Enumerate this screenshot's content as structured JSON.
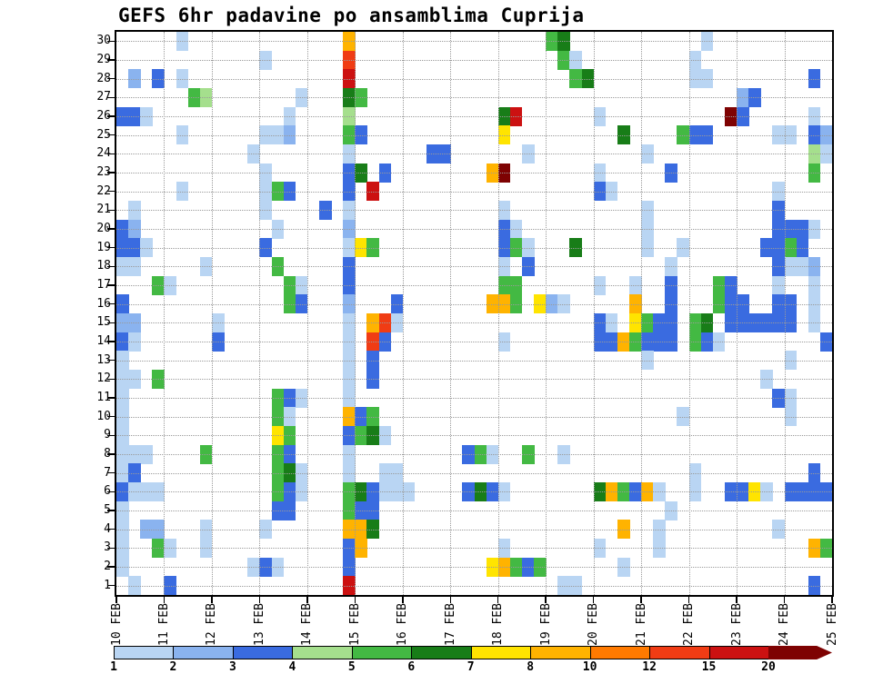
{
  "chart_data": {
    "type": "heatmap",
    "title": "GEFS 6hr padavine po ansamblima Cuprija",
    "x_axis": {
      "tick_labels": [
        "10 FEB",
        "11 FEB",
        "12 FEB",
        "13 FEB",
        "14 FEB",
        "15 FEB",
        "16 FEB",
        "17 FEB",
        "18 FEB",
        "19 FEB",
        "20 FEB",
        "21 FEB",
        "22 FEB",
        "23 FEB",
        "24 FEB",
        "25 FEB"
      ],
      "steps_per_day": 4,
      "n_steps": 60
    },
    "y_axis": {
      "tick_labels": [
        "1",
        "2",
        "3",
        "4",
        "5",
        "6",
        "7",
        "8",
        "9",
        "10",
        "11",
        "12",
        "13",
        "14",
        "15",
        "16",
        "17",
        "18",
        "19",
        "20",
        "21",
        "22",
        "23",
        "24",
        "25",
        "26",
        "27",
        "28",
        "29",
        "30"
      ],
      "n_members": 30
    },
    "colorbar": {
      "labels": [
        "1",
        "2",
        "3",
        "4",
        "5",
        "6",
        "7",
        "8",
        "10",
        "12",
        "15",
        "20"
      ],
      "thresholds": [
        1,
        2,
        3,
        4,
        5,
        6,
        7,
        8,
        10,
        12,
        15,
        20
      ],
      "colors": [
        "#b9d5f3",
        "#8ab3ef",
        "#3a6be0",
        "#a5df8d",
        "#43b943",
        "#187d18",
        "#ffe400",
        "#ffb300",
        "#ff7a00",
        "#f03c14",
        "#cc1111",
        "#7e0202"
      ]
    },
    "cells": [
      [
        30,
        5,
        1.5
      ],
      [
        30,
        19,
        9
      ],
      [
        30,
        36,
        5.5
      ],
      [
        30,
        37,
        6.5
      ],
      [
        30,
        49,
        1.5
      ],
      [
        29,
        12,
        1.5
      ],
      [
        29,
        19,
        13
      ],
      [
        29,
        37,
        5.5
      ],
      [
        29,
        38,
        1.5
      ],
      [
        29,
        48,
        1.5
      ],
      [
        28,
        1,
        2.5
      ],
      [
        28,
        3,
        3.5
      ],
      [
        28,
        5,
        1.5
      ],
      [
        28,
        19,
        17
      ],
      [
        28,
        38,
        5.5
      ],
      [
        28,
        39,
        6.5
      ],
      [
        28,
        48,
        1.5
      ],
      [
        28,
        49,
        1.5
      ],
      [
        28,
        58,
        3.5
      ],
      [
        27,
        6,
        5.5
      ],
      [
        27,
        7,
        4.5
      ],
      [
        27,
        15,
        1.5
      ],
      [
        27,
        19,
        6.5
      ],
      [
        27,
        20,
        5.5
      ],
      [
        27,
        52,
        2.5
      ],
      [
        27,
        53,
        3.5
      ],
      [
        26,
        0,
        3.5
      ],
      [
        26,
        1,
        3.5
      ],
      [
        26,
        2,
        1.5
      ],
      [
        26,
        14,
        1.5
      ],
      [
        26,
        19,
        4.5
      ],
      [
        26,
        32,
        6.5
      ],
      [
        26,
        33,
        17
      ],
      [
        26,
        40,
        1.5
      ],
      [
        26,
        51,
        22
      ],
      [
        26,
        52,
        3.5
      ],
      [
        26,
        58,
        1.5
      ],
      [
        25,
        5,
        1.5
      ],
      [
        25,
        12,
        1.5
      ],
      [
        25,
        13,
        1.5
      ],
      [
        25,
        14,
        2.5
      ],
      [
        25,
        19,
        5.5
      ],
      [
        25,
        20,
        3.5
      ],
      [
        25,
        32,
        7.5
      ],
      [
        25,
        42,
        6.5
      ],
      [
        25,
        47,
        5.5
      ],
      [
        25,
        48,
        3.5
      ],
      [
        25,
        49,
        3.5
      ],
      [
        25,
        55,
        1.5
      ],
      [
        25,
        56,
        1.5
      ],
      [
        25,
        58,
        3.5
      ],
      [
        25,
        59,
        2.5
      ],
      [
        24,
        11,
        1.5
      ],
      [
        24,
        19,
        1.5
      ],
      [
        24,
        26,
        3.5
      ],
      [
        24,
        27,
        3.5
      ],
      [
        24,
        34,
        1.5
      ],
      [
        24,
        44,
        1.5
      ],
      [
        24,
        58,
        4.5
      ],
      [
        24,
        59,
        1.5
      ],
      [
        23,
        12,
        1.5
      ],
      [
        23,
        19,
        3.5
      ],
      [
        23,
        20,
        6.5
      ],
      [
        23,
        22,
        3.5
      ],
      [
        23,
        31,
        9
      ],
      [
        23,
        32,
        22
      ],
      [
        23,
        40,
        1.5
      ],
      [
        23,
        46,
        3.5
      ],
      [
        23,
        58,
        5.5
      ],
      [
        22,
        5,
        1.5
      ],
      [
        22,
        12,
        1.5
      ],
      [
        22,
        13,
        5.5
      ],
      [
        22,
        14,
        3.5
      ],
      [
        22,
        19,
        3.5
      ],
      [
        22,
        21,
        17
      ],
      [
        22,
        40,
        3.5
      ],
      [
        22,
        41,
        1.5
      ],
      [
        22,
        55,
        1.5
      ],
      [
        21,
        1,
        1.5
      ],
      [
        21,
        12,
        1.5
      ],
      [
        21,
        17,
        3.5
      ],
      [
        21,
        19,
        1.5
      ],
      [
        21,
        32,
        1.5
      ],
      [
        21,
        44,
        1.5
      ],
      [
        21,
        55,
        3.5
      ],
      [
        20,
        0,
        3.5
      ],
      [
        20,
        1,
        2.5
      ],
      [
        20,
        13,
        1.5
      ],
      [
        20,
        19,
        2.5
      ],
      [
        20,
        32,
        3.5
      ],
      [
        20,
        33,
        1.5
      ],
      [
        20,
        44,
        1.5
      ],
      [
        20,
        55,
        3.5
      ],
      [
        20,
        56,
        3.5
      ],
      [
        20,
        57,
        3.5
      ],
      [
        20,
        58,
        1.5
      ],
      [
        19,
        0,
        3.5
      ],
      [
        19,
        1,
        3.5
      ],
      [
        19,
        2,
        1.5
      ],
      [
        19,
        12,
        3.5
      ],
      [
        19,
        19,
        1.5
      ],
      [
        19,
        20,
        7.5
      ],
      [
        19,
        21,
        5.5
      ],
      [
        19,
        32,
        3.5
      ],
      [
        19,
        33,
        5.5
      ],
      [
        19,
        34,
        1.5
      ],
      [
        19,
        38,
        6.5
      ],
      [
        19,
        44,
        1.5
      ],
      [
        19,
        47,
        1.5
      ],
      [
        19,
        54,
        3.5
      ],
      [
        19,
        55,
        3.5
      ],
      [
        19,
        56,
        5.5
      ],
      [
        19,
        57,
        3.5
      ],
      [
        18,
        0,
        1.5
      ],
      [
        18,
        1,
        1.5
      ],
      [
        18,
        7,
        1.5
      ],
      [
        18,
        13,
        5.5
      ],
      [
        18,
        19,
        3.5
      ],
      [
        18,
        32,
        1.5
      ],
      [
        18,
        34,
        3.5
      ],
      [
        18,
        46,
        1.5
      ],
      [
        18,
        55,
        3.5
      ],
      [
        18,
        56,
        1.5
      ],
      [
        18,
        57,
        1.5
      ],
      [
        18,
        58,
        2.5
      ],
      [
        17,
        3,
        5.5
      ],
      [
        17,
        4,
        1.5
      ],
      [
        17,
        14,
        5.5
      ],
      [
        17,
        15,
        1.5
      ],
      [
        17,
        19,
        3.5
      ],
      [
        17,
        32,
        5.5
      ],
      [
        17,
        33,
        5.5
      ],
      [
        17,
        40,
        1.5
      ],
      [
        17,
        43,
        1.5
      ],
      [
        17,
        46,
        3.5
      ],
      [
        17,
        50,
        5.5
      ],
      [
        17,
        51,
        3.5
      ],
      [
        17,
        55,
        1.5
      ],
      [
        17,
        58,
        1.5
      ],
      [
        16,
        0,
        3.5
      ],
      [
        16,
        14,
        5.5
      ],
      [
        16,
        15,
        3.5
      ],
      [
        16,
        19,
        2.5
      ],
      [
        16,
        23,
        3.5
      ],
      [
        16,
        31,
        9
      ],
      [
        16,
        32,
        9
      ],
      [
        16,
        33,
        5.5
      ],
      [
        16,
        35,
        7.5
      ],
      [
        16,
        36,
        2.5
      ],
      [
        16,
        37,
        1.5
      ],
      [
        16,
        43,
        9
      ],
      [
        16,
        46,
        3.5
      ],
      [
        16,
        50,
        5.5
      ],
      [
        16,
        51,
        3.5
      ],
      [
        16,
        52,
        3.5
      ],
      [
        16,
        55,
        3.5
      ],
      [
        16,
        56,
        3.5
      ],
      [
        16,
        58,
        1.5
      ],
      [
        15,
        0,
        2.5
      ],
      [
        15,
        1,
        2.5
      ],
      [
        15,
        8,
        1.5
      ],
      [
        15,
        19,
        1.5
      ],
      [
        15,
        21,
        9
      ],
      [
        15,
        22,
        13
      ],
      [
        15,
        23,
        1.5
      ],
      [
        15,
        40,
        3.5
      ],
      [
        15,
        41,
        1.5
      ],
      [
        15,
        43,
        7.5
      ],
      [
        15,
        44,
        5.5
      ],
      [
        15,
        45,
        3.5
      ],
      [
        15,
        46,
        3.5
      ],
      [
        15,
        48,
        5.5
      ],
      [
        15,
        49,
        6.5
      ],
      [
        15,
        51,
        3.5
      ],
      [
        15,
        52,
        3.5
      ],
      [
        15,
        53,
        3.5
      ],
      [
        15,
        54,
        3.5
      ],
      [
        15,
        55,
        3.5
      ],
      [
        15,
        56,
        3.5
      ],
      [
        15,
        58,
        1.5
      ],
      [
        14,
        0,
        3.5
      ],
      [
        14,
        1,
        1.5
      ],
      [
        14,
        8,
        3.5
      ],
      [
        14,
        19,
        1.5
      ],
      [
        14,
        21,
        13
      ],
      [
        14,
        22,
        3.5
      ],
      [
        14,
        32,
        1.5
      ],
      [
        14,
        40,
        3.5
      ],
      [
        14,
        41,
        3.5
      ],
      [
        14,
        42,
        9
      ],
      [
        14,
        43,
        5.5
      ],
      [
        14,
        44,
        3.5
      ],
      [
        14,
        45,
        3.5
      ],
      [
        14,
        46,
        3.5
      ],
      [
        14,
        48,
        5.5
      ],
      [
        14,
        49,
        3.5
      ],
      [
        14,
        50,
        1.5
      ],
      [
        14,
        59,
        3.5
      ],
      [
        13,
        0,
        1.5
      ],
      [
        13,
        19,
        1.5
      ],
      [
        13,
        21,
        3.5
      ],
      [
        13,
        44,
        1.5
      ],
      [
        13,
        56,
        1.5
      ],
      [
        12,
        0,
        1.5
      ],
      [
        12,
        1,
        1.5
      ],
      [
        12,
        3,
        5.5
      ],
      [
        12,
        19,
        1.5
      ],
      [
        12,
        21,
        3.5
      ],
      [
        12,
        54,
        1.5
      ],
      [
        11,
        0,
        1.5
      ],
      [
        11,
        13,
        5.5
      ],
      [
        11,
        14,
        3.5
      ],
      [
        11,
        15,
        1.5
      ],
      [
        11,
        19,
        1.5
      ],
      [
        11,
        55,
        3.5
      ],
      [
        11,
        56,
        1.5
      ],
      [
        10,
        0,
        1.5
      ],
      [
        10,
        13,
        5.5
      ],
      [
        10,
        14,
        1.5
      ],
      [
        10,
        19,
        9
      ],
      [
        10,
        20,
        3.5
      ],
      [
        10,
        21,
        5.5
      ],
      [
        10,
        47,
        1.5
      ],
      [
        10,
        56,
        1.5
      ],
      [
        9,
        0,
        1.5
      ],
      [
        9,
        13,
        7.5
      ],
      [
        9,
        14,
        5.5
      ],
      [
        9,
        19,
        3.5
      ],
      [
        9,
        20,
        5.5
      ],
      [
        9,
        21,
        6.5
      ],
      [
        9,
        22,
        1.5
      ],
      [
        8,
        0,
        1.5
      ],
      [
        8,
        1,
        1.5
      ],
      [
        8,
        2,
        1.5
      ],
      [
        8,
        7,
        5.5
      ],
      [
        8,
        13,
        5.5
      ],
      [
        8,
        14,
        3.5
      ],
      [
        8,
        19,
        1.5
      ],
      [
        8,
        29,
        3.5
      ],
      [
        8,
        30,
        5.5
      ],
      [
        8,
        31,
        1.5
      ],
      [
        8,
        34,
        5.5
      ],
      [
        8,
        37,
        1.5
      ],
      [
        7,
        0,
        1.5
      ],
      [
        7,
        1,
        3.5
      ],
      [
        7,
        13,
        5.5
      ],
      [
        7,
        14,
        6.5
      ],
      [
        7,
        15,
        1.5
      ],
      [
        7,
        19,
        1.5
      ],
      [
        7,
        22,
        1.5
      ],
      [
        7,
        23,
        1.5
      ],
      [
        7,
        48,
        1.5
      ],
      [
        7,
        58,
        3.5
      ],
      [
        6,
        0,
        3.5
      ],
      [
        6,
        1,
        1.5
      ],
      [
        6,
        2,
        1.5
      ],
      [
        6,
        3,
        1.5
      ],
      [
        6,
        13,
        5.5
      ],
      [
        6,
        14,
        3.5
      ],
      [
        6,
        15,
        1.5
      ],
      [
        6,
        19,
        5.5
      ],
      [
        6,
        20,
        6.5
      ],
      [
        6,
        21,
        3.5
      ],
      [
        6,
        22,
        1.5
      ],
      [
        6,
        23,
        1.5
      ],
      [
        6,
        24,
        1.5
      ],
      [
        6,
        29,
        3.5
      ],
      [
        6,
        30,
        6.5
      ],
      [
        6,
        31,
        3.5
      ],
      [
        6,
        32,
        1.5
      ],
      [
        6,
        40,
        6.5
      ],
      [
        6,
        41,
        9
      ],
      [
        6,
        42,
        5.5
      ],
      [
        6,
        43,
        3.5
      ],
      [
        6,
        44,
        9
      ],
      [
        6,
        45,
        1.5
      ],
      [
        6,
        48,
        1.5
      ],
      [
        6,
        51,
        3.5
      ],
      [
        6,
        52,
        3.5
      ],
      [
        6,
        53,
        7.5
      ],
      [
        6,
        54,
        1.5
      ],
      [
        6,
        56,
        3.5
      ],
      [
        6,
        57,
        3.5
      ],
      [
        6,
        58,
        3.5
      ],
      [
        6,
        59,
        3.5
      ],
      [
        5,
        0,
        1.5
      ],
      [
        5,
        13,
        3.5
      ],
      [
        5,
        14,
        3.5
      ],
      [
        5,
        19,
        5.5
      ],
      [
        5,
        20,
        3.5
      ],
      [
        5,
        21,
        3.5
      ],
      [
        5,
        46,
        1.5
      ],
      [
        4,
        0,
        1.5
      ],
      [
        4,
        2,
        2.5
      ],
      [
        4,
        3,
        2.5
      ],
      [
        4,
        7,
        1.5
      ],
      [
        4,
        12,
        1.5
      ],
      [
        4,
        19,
        9
      ],
      [
        4,
        20,
        9
      ],
      [
        4,
        21,
        6.5
      ],
      [
        4,
        42,
        9
      ],
      [
        4,
        45,
        1.5
      ],
      [
        4,
        55,
        1.5
      ],
      [
        3,
        0,
        1.5
      ],
      [
        3,
        3,
        5.5
      ],
      [
        3,
        4,
        1.5
      ],
      [
        3,
        7,
        1.5
      ],
      [
        3,
        19,
        3.5
      ],
      [
        3,
        20,
        9
      ],
      [
        3,
        32,
        1.5
      ],
      [
        3,
        40,
        1.5
      ],
      [
        3,
        45,
        1.5
      ],
      [
        3,
        58,
        9
      ],
      [
        3,
        59,
        5.5
      ],
      [
        2,
        0,
        1.5
      ],
      [
        2,
        11,
        1.5
      ],
      [
        2,
        12,
        3.5
      ],
      [
        2,
        13,
        1.5
      ],
      [
        2,
        19,
        3.5
      ],
      [
        2,
        31,
        7.5
      ],
      [
        2,
        32,
        9
      ],
      [
        2,
        33,
        5.5
      ],
      [
        2,
        34,
        3.5
      ],
      [
        2,
        35,
        5.5
      ],
      [
        2,
        42,
        1.5
      ],
      [
        1,
        1,
        1.5
      ],
      [
        1,
        4,
        3.5
      ],
      [
        1,
        19,
        17
      ],
      [
        1,
        37,
        1.5
      ],
      [
        1,
        38,
        1.5
      ],
      [
        1,
        58,
        3.5
      ]
    ]
  }
}
